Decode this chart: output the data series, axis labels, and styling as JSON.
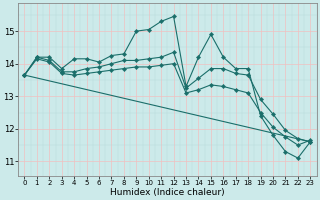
{
  "xlabel": "Humidex (Indice chaleur)",
  "bg_color": "#cceaea",
  "line_color": "#1a6e6a",
  "grid_color_minor": "#f0c0c0",
  "grid_color_major": "#b8d8d8",
  "xlim": [
    -0.5,
    23.5
  ],
  "ylim": [
    10.55,
    15.85
  ],
  "yticks": [
    11,
    12,
    13,
    14,
    15
  ],
  "xticks": [
    0,
    1,
    2,
    3,
    4,
    5,
    6,
    7,
    8,
    9,
    10,
    11,
    12,
    13,
    14,
    15,
    16,
    17,
    18,
    19,
    20,
    21,
    22,
    23
  ],
  "lines": [
    {
      "x": [
        0,
        1,
        2,
        3,
        4,
        5,
        6,
        7,
        8,
        9,
        10,
        11,
        12,
        13,
        14,
        15,
        16,
        17,
        18,
        19,
        20,
        21,
        22,
        23
      ],
      "y": [
        13.65,
        14.2,
        14.2,
        13.85,
        14.15,
        14.15,
        14.05,
        14.25,
        14.3,
        15.0,
        15.05,
        15.3,
        15.45,
        13.3,
        14.2,
        14.9,
        14.2,
        13.85,
        13.85,
        12.4,
        11.8,
        11.3,
        11.1,
        11.6
      ]
    },
    {
      "x": [
        0,
        1,
        2,
        3,
        4,
        5,
        6,
        7,
        8,
        9,
        10,
        11,
        12,
        13,
        14,
        15,
        16,
        17,
        18,
        19,
        20,
        21,
        22,
        23
      ],
      "y": [
        13.65,
        14.2,
        14.1,
        13.75,
        13.75,
        13.85,
        13.9,
        14.0,
        14.1,
        14.1,
        14.15,
        14.2,
        14.35,
        13.25,
        13.55,
        13.85,
        13.85,
        13.7,
        13.65,
        12.9,
        12.45,
        11.95,
        11.7,
        11.6
      ]
    },
    {
      "x": [
        0,
        1,
        2,
        3,
        4,
        5,
        6,
        7,
        8,
        9,
        10,
        11,
        12,
        13,
        14,
        15,
        16,
        17,
        18,
        19,
        20,
        21,
        22,
        23
      ],
      "y": [
        13.65,
        14.15,
        14.05,
        13.7,
        13.65,
        13.7,
        13.75,
        13.8,
        13.85,
        13.9,
        13.9,
        13.95,
        14.0,
        13.1,
        13.2,
        13.35,
        13.3,
        13.2,
        13.1,
        12.5,
        12.05,
        11.75,
        11.5,
        11.65
      ]
    },
    {
      "x": [
        0,
        23
      ],
      "y": [
        13.65,
        11.6
      ]
    }
  ]
}
